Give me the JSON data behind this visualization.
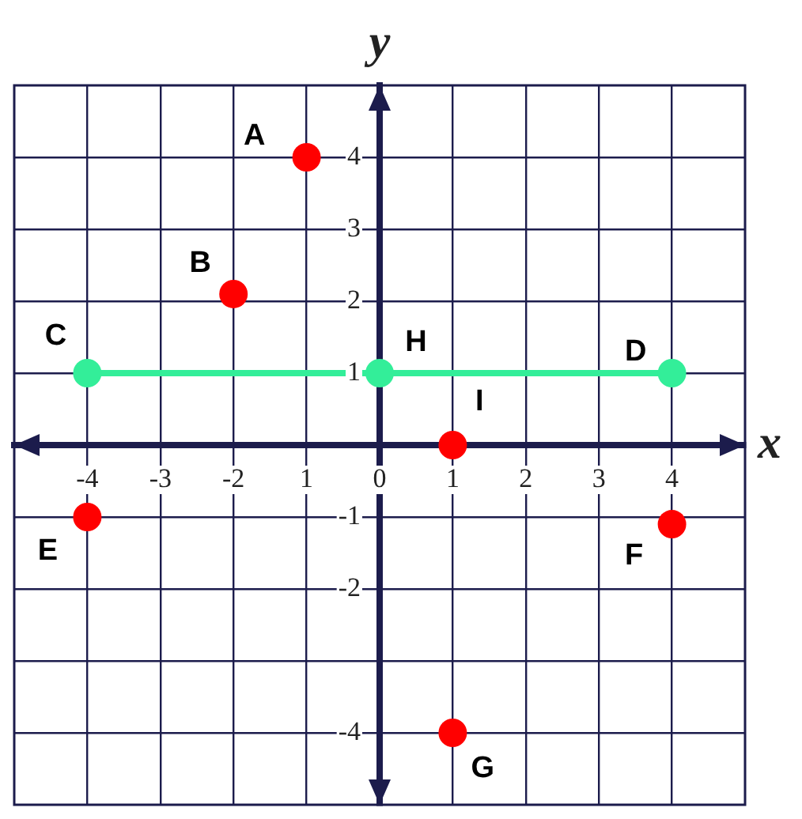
{
  "chart_data": {
    "type": "scatter",
    "xlabel": "x",
    "ylabel": "y",
    "xlim": [
      -5,
      5
    ],
    "ylim": [
      -5,
      5
    ],
    "xticks": [
      -4,
      -3,
      -2,
      {
        "value": -1,
        "label": "1"
      },
      0,
      1,
      2,
      3,
      4
    ],
    "yticks": [
      -4,
      {
        "value": -3,
        "label": null
      },
      -2,
      -1,
      {
        "value": 0,
        "label": null
      },
      1,
      2,
      3,
      4
    ],
    "grid": true,
    "legend": false,
    "marker": "circle",
    "series": [
      {
        "type": "scatter",
        "color": "#ff0000",
        "x": [
          -1,
          -2,
          -4,
          4,
          1,
          1
        ],
        "values": [
          4,
          2.1,
          -1,
          -1.1,
          -4,
          0
        ]
      },
      {
        "type": "line",
        "color": "#33ee99",
        "x": [
          -4,
          0,
          4
        ],
        "values": [
          1,
          1,
          1
        ],
        "line_style": "solid"
      }
    ],
    "annotations": [
      {
        "text": "A",
        "x": -1,
        "y": 4
      },
      {
        "text": "B",
        "x": -2,
        "y": 2.1
      },
      {
        "text": "C",
        "x": -4,
        "y": 1
      },
      {
        "text": "D",
        "x": 4,
        "y": 1
      },
      {
        "text": "E",
        "x": -4,
        "y": -1
      },
      {
        "text": "F",
        "x": 4,
        "y": -1.1
      },
      {
        "text": "G",
        "x": 1,
        "y": -4
      },
      {
        "text": "H",
        "x": 0,
        "y": 1
      },
      {
        "text": "I",
        "x": 1,
        "y": 0
      }
    ]
  }
}
